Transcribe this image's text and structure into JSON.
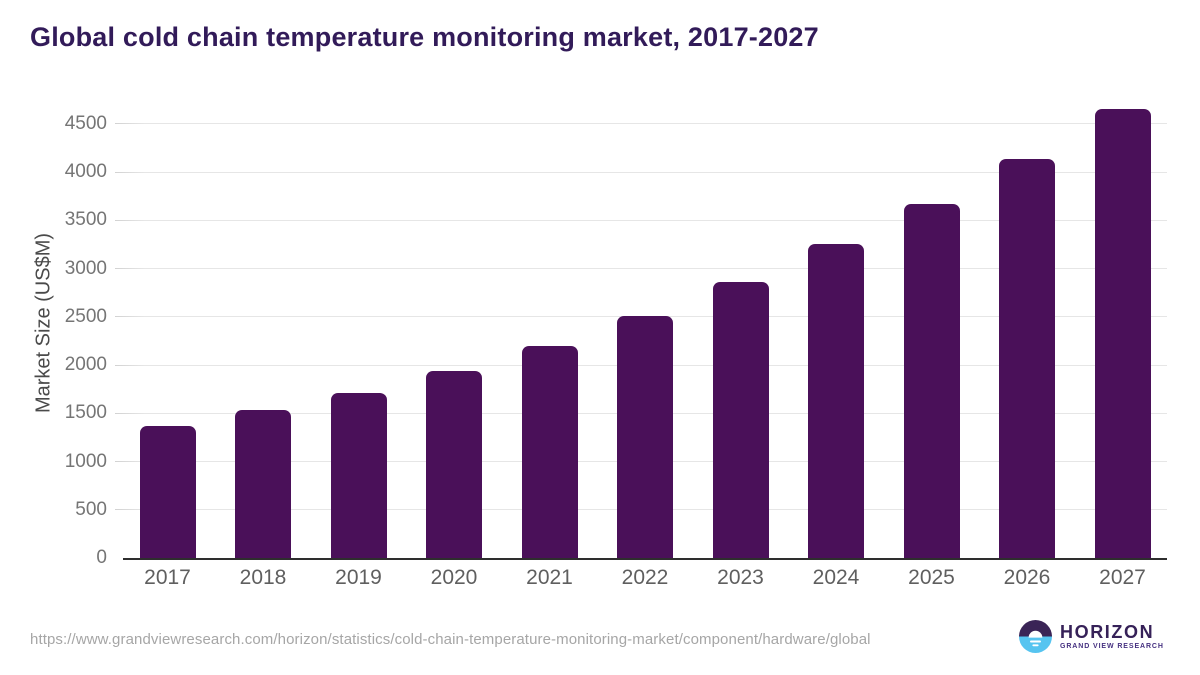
{
  "page": {
    "title": "Global cold chain temperature monitoring market, 2017-2027"
  },
  "chart_data": {
    "type": "bar",
    "title": "Global cold chain temperature monitoring market, 2017-2027",
    "categories": [
      "2017",
      "2018",
      "2019",
      "2020",
      "2021",
      "2022",
      "2023",
      "2024",
      "2025",
      "2026",
      "2027"
    ],
    "values": [
      1370,
      1535,
      1715,
      1940,
      2195,
      2510,
      2860,
      3250,
      3665,
      4130,
      4650
    ],
    "xlabel": "",
    "ylabel": "Market Size (US$M)",
    "ylim": [
      0,
      4500
    ],
    "yticks": [
      0,
      500,
      1000,
      1500,
      2000,
      2500,
      3000,
      3500,
      4000,
      4500
    ],
    "grid": true,
    "legend": false,
    "bar_color": "#4a1059"
  },
  "footer": {
    "source_url": "https://www.grandviewresearch.com/horizon/statistics/cold-chain-temperature-monitoring-market/component/hardware/global"
  },
  "logo": {
    "brand": "HORIZON",
    "subtitle": "GRAND VIEW RESEARCH",
    "icon": "sunrise-circle-icon"
  },
  "colors": {
    "bar": "#4a1059",
    "title_text": "#321b59",
    "axis_line": "#2e2e2e",
    "gridline": "#e6e6e6",
    "y_tick_text": "#757575",
    "x_tick_text": "#5f5f5f",
    "y_axis_title_text": "#4a4a4a",
    "url_text": "#a6a6a6",
    "logo_purple": "#3a2456",
    "logo_blue": "#56c4f0",
    "logo_brand_text": "#362158",
    "logo_subtitle_text": "#453080"
  }
}
